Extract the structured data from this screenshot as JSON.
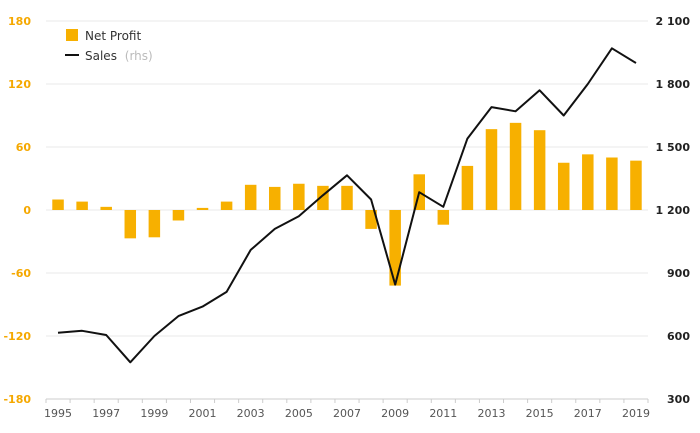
{
  "chart_data": {
    "type": "bar",
    "x": [
      1995,
      1996,
      1997,
      1998,
      1999,
      2000,
      2001,
      2002,
      2003,
      2004,
      2005,
      2006,
      2007,
      2008,
      2009,
      2010,
      2011,
      2012,
      2013,
      2014,
      2015,
      2016,
      2017,
      2018,
      2019
    ],
    "x_tick_labels": [
      "1995",
      "1997",
      "1999",
      "2001",
      "2003",
      "2005",
      "2007",
      "2009",
      "2011",
      "2013",
      "2015",
      "2017",
      "2019"
    ],
    "series": [
      {
        "name": "Net Profit",
        "type": "bar",
        "axis": "left",
        "color": "#f7b000",
        "values": [
          10,
          8,
          3,
          -27,
          -26,
          -10,
          2,
          8,
          24,
          22,
          25,
          23,
          23,
          -18,
          -72,
          34,
          -14,
          42,
          77,
          83,
          76,
          45,
          53,
          50,
          47
        ]
      },
      {
        "name": "Sales",
        "name_note": "(rhs)",
        "type": "line",
        "axis": "right",
        "color": "#111111",
        "values": [
          615,
          625,
          605,
          475,
          600,
          695,
          740,
          810,
          1010,
          1110,
          1170,
          1270,
          1365,
          1250,
          845,
          1285,
          1215,
          1540,
          1690,
          1670,
          1770,
          1650,
          1800,
          1970,
          1900
        ]
      }
    ],
    "y_left": {
      "lim": [
        -180,
        180
      ],
      "ticks": [
        180,
        120,
        60,
        0,
        -60,
        -120,
        -180
      ],
      "tick_labels": [
        "180",
        "120",
        "60",
        "0",
        "-60",
        "-120",
        "-180"
      ],
      "color": "#f5a800"
    },
    "y_right": {
      "lim": [
        300,
        2100
      ],
      "ticks": [
        2100,
        1800,
        1500,
        1200,
        900,
        600,
        300
      ],
      "tick_labels": [
        "2 100",
        "1 800",
        "1 500",
        "1 200",
        "900",
        "600",
        "300"
      ]
    },
    "grid": true,
    "legend_position": "top-left"
  }
}
